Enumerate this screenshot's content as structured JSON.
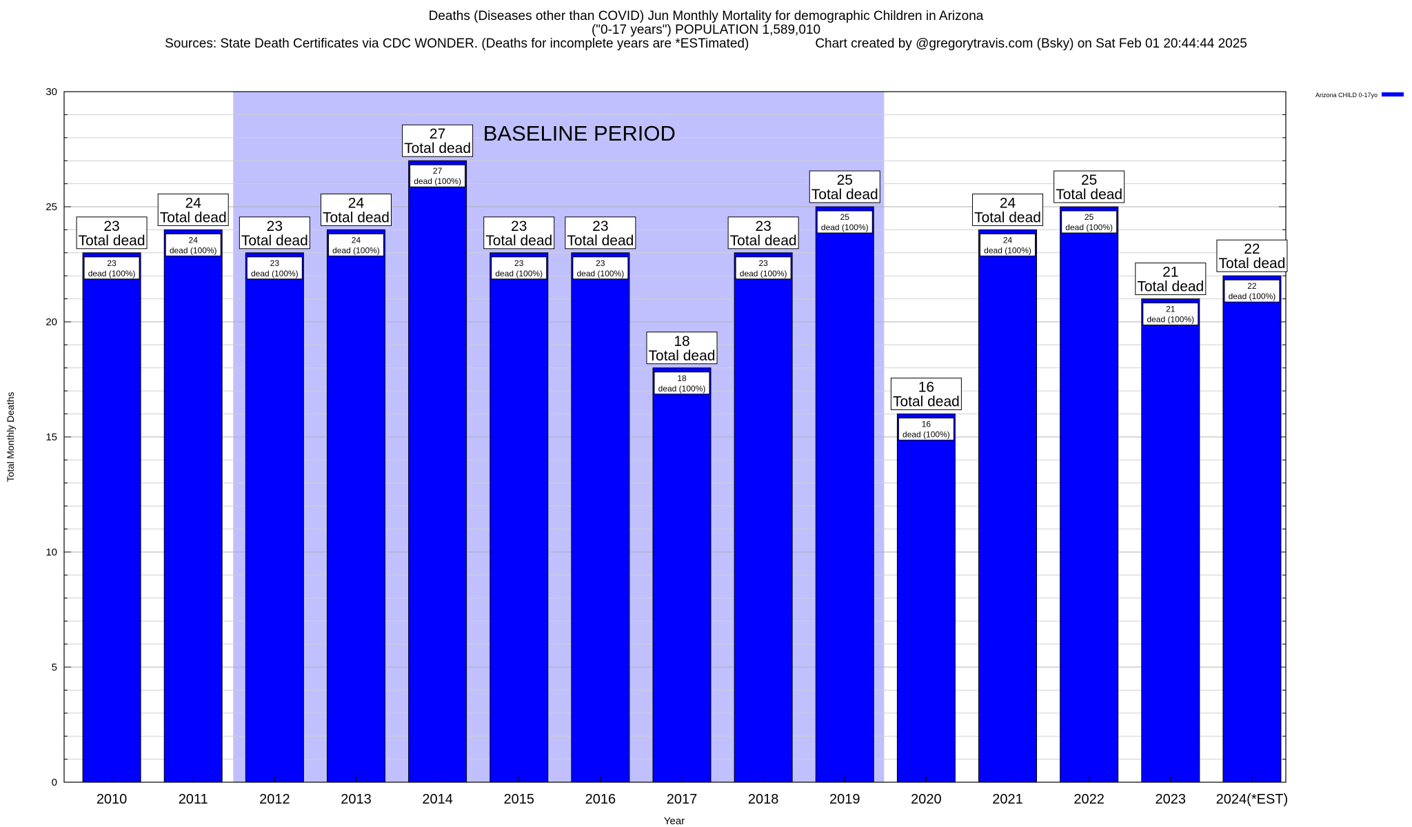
{
  "chart_data": {
    "type": "bar",
    "title": "Deaths (Diseases other than COVID) Jun Monthly Mortality for demographic Children in Arizona",
    "subtitle": "(\"0-17 years\") POPULATION 1,589,010",
    "sources": "Sources: State Death Certificates via CDC WONDER. (Deaths for incomplete years are *ESTimated)",
    "credit": "Chart created by @gregorytravis.com (Bsky) on Sat Feb 01 20:44:44 2025",
    "xlabel": "Year",
    "ylabel": "Total Monthly Deaths",
    "ylim": [
      0,
      30
    ],
    "yticks": [
      0,
      5,
      10,
      15,
      20,
      25,
      30
    ],
    "grid": true,
    "legend_position": "top-right",
    "categories": [
      "2010",
      "2011",
      "2012",
      "2013",
      "2014",
      "2015",
      "2016",
      "2017",
      "2018",
      "2019",
      "2020",
      "2021",
      "2022",
      "2023",
      "2024(*EST)"
    ],
    "series": [
      {
        "name": "Arizona CHILD 0-17yo",
        "color": "#0000ff",
        "values": [
          23,
          24,
          23,
          24,
          27,
          23,
          23,
          18,
          23,
          25,
          16,
          24,
          25,
          21,
          22
        ]
      }
    ],
    "total_label_suffix": "Total dead",
    "inner_label_suffix": "dead (100%)",
    "baseline": {
      "label": "BASELINE PERIOD",
      "start": "2012",
      "end": "2019",
      "color": "#c0c0ff"
    }
  }
}
